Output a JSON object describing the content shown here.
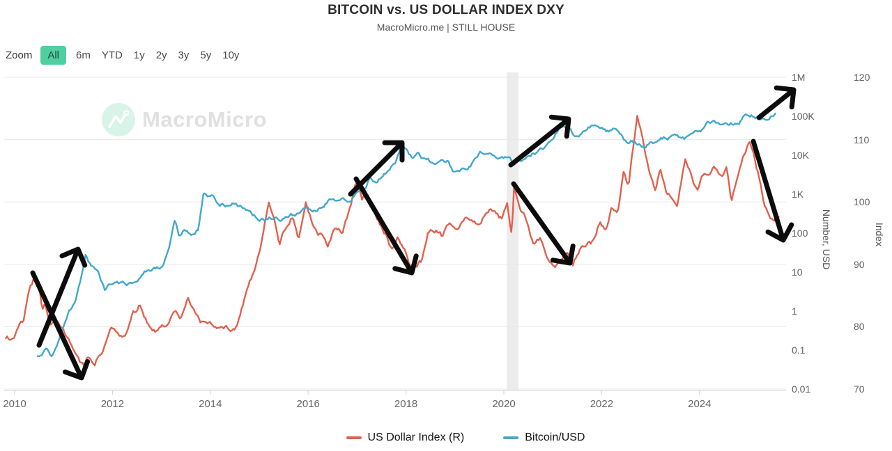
{
  "header": {
    "title": "BITCOIN vs. US DOLLAR INDEX DXY",
    "subtitle": "MacroMicro.me | STILL HOUSE"
  },
  "zoom_toolbar": {
    "label": "Zoom",
    "buttons": [
      {
        "label": "All",
        "active": true
      },
      {
        "label": "6m",
        "active": false
      },
      {
        "label": "YTD",
        "active": false
      },
      {
        "label": "1y",
        "active": false
      },
      {
        "label": "2y",
        "active": false
      },
      {
        "label": "3y",
        "active": false
      },
      {
        "label": "5y",
        "active": false
      },
      {
        "label": "10y",
        "active": false
      }
    ],
    "active_color": "#4ed0a2"
  },
  "watermark": {
    "text": "MacroMicro"
  },
  "legend": {
    "items": [
      {
        "label": "US Dollar Index (R)",
        "color": "#e2604d"
      },
      {
        "label": "Bitcoin/USD",
        "color": "#43a8cb"
      }
    ]
  },
  "chart_data": {
    "type": "line",
    "title": "BITCOIN vs. US DOLLAR INDEX DXY",
    "grid": true,
    "legend_position": "bottom",
    "x_axis": {
      "ticks": [
        2010,
        2012,
        2014,
        2016,
        2018,
        2020,
        2022,
        2024
      ],
      "range": [
        2009.8,
        2025.75
      ]
    },
    "y_axis_left_log": {
      "label": "Number, USD",
      "ticks": [
        "1M",
        "100K",
        "10K",
        "1K",
        "100",
        "10",
        "1",
        "0.1",
        "0.01"
      ],
      "tick_log10": [
        6,
        5,
        4,
        3,
        2,
        1,
        0,
        -1,
        -2
      ],
      "range_log10": [
        -2,
        6
      ]
    },
    "y_axis_right": {
      "label": "Index",
      "ticks": [
        120,
        110,
        100,
        90,
        80,
        70
      ],
      "range": [
        70,
        120
      ]
    },
    "series": [
      {
        "name": "US Dollar Index (R)",
        "axis": "index",
        "color": "#e2604d",
        "points": [
          [
            2009.82,
            77.8
          ],
          [
            2010.0,
            78.2
          ],
          [
            2010.08,
            80.2
          ],
          [
            2010.18,
            80.8
          ],
          [
            2010.3,
            85.8
          ],
          [
            2010.42,
            88.3
          ],
          [
            2010.5,
            86.0
          ],
          [
            2010.56,
            82.6
          ],
          [
            2010.63,
            83.5
          ],
          [
            2010.72,
            80.6
          ],
          [
            2010.82,
            81.6
          ],
          [
            2010.95,
            79.6
          ],
          [
            2011.05,
            78.2
          ],
          [
            2011.16,
            77.4
          ],
          [
            2011.3,
            74.6
          ],
          [
            2011.42,
            73.6
          ],
          [
            2011.52,
            75.2
          ],
          [
            2011.63,
            74.2
          ],
          [
            2011.8,
            76.6
          ],
          [
            2011.95,
            80.2
          ],
          [
            2012.1,
            79.2
          ],
          [
            2012.25,
            78.8
          ],
          [
            2012.42,
            81.8
          ],
          [
            2012.56,
            83.4
          ],
          [
            2012.7,
            81.2
          ],
          [
            2012.85,
            79.6
          ],
          [
            2013.0,
            79.9
          ],
          [
            2013.12,
            80.6
          ],
          [
            2013.25,
            83.1
          ],
          [
            2013.4,
            81.6
          ],
          [
            2013.54,
            84.4
          ],
          [
            2013.7,
            81.4
          ],
          [
            2013.85,
            80.4
          ],
          [
            2014.0,
            80.6
          ],
          [
            2014.15,
            80.1
          ],
          [
            2014.3,
            79.9
          ],
          [
            2014.45,
            79.6
          ],
          [
            2014.55,
            80.2
          ],
          [
            2014.7,
            84.9
          ],
          [
            2014.85,
            88.2
          ],
          [
            2015.0,
            92.2
          ],
          [
            2015.2,
            100.2
          ],
          [
            2015.3,
            97.2
          ],
          [
            2015.42,
            93.4
          ],
          [
            2015.55,
            96.2
          ],
          [
            2015.68,
            98.1
          ],
          [
            2015.8,
            94.2
          ],
          [
            2015.95,
            100.1
          ],
          [
            2016.1,
            96.2
          ],
          [
            2016.25,
            94.9
          ],
          [
            2016.4,
            93.2
          ],
          [
            2016.55,
            96.3
          ],
          [
            2016.7,
            95.6
          ],
          [
            2016.85,
            98.6
          ],
          [
            2016.98,
            103.2
          ],
          [
            2017.1,
            100.6
          ],
          [
            2017.22,
            101.1
          ],
          [
            2017.4,
            97.2
          ],
          [
            2017.55,
            95.2
          ],
          [
            2017.7,
            92.6
          ],
          [
            2017.85,
            94.1
          ],
          [
            2018.0,
            91.6
          ],
          [
            2018.12,
            88.8
          ],
          [
            2018.3,
            90.1
          ],
          [
            2018.45,
            95.1
          ],
          [
            2018.6,
            95.4
          ],
          [
            2018.75,
            94.4
          ],
          [
            2018.9,
            96.9
          ],
          [
            2019.05,
            96.1
          ],
          [
            2019.2,
            97.4
          ],
          [
            2019.35,
            97.1
          ],
          [
            2019.5,
            96.3
          ],
          [
            2019.65,
            98.4
          ],
          [
            2019.8,
            98.9
          ],
          [
            2019.95,
            97.4
          ],
          [
            2020.07,
            99.6
          ],
          [
            2020.16,
            95.1
          ],
          [
            2020.21,
            102.7
          ],
          [
            2020.3,
            99.3
          ],
          [
            2020.45,
            97.1
          ],
          [
            2020.6,
            93.4
          ],
          [
            2020.75,
            93.9
          ],
          [
            2020.9,
            91.1
          ],
          [
            2021.05,
            89.9
          ],
          [
            2021.15,
            91.1
          ],
          [
            2021.28,
            92.4
          ],
          [
            2021.4,
            89.9
          ],
          [
            2021.55,
            92.4
          ],
          [
            2021.7,
            93.1
          ],
          [
            2021.85,
            93.6
          ],
          [
            2021.95,
            96.3
          ],
          [
            2022.1,
            95.9
          ],
          [
            2022.2,
            99.1
          ],
          [
            2022.33,
            98.6
          ],
          [
            2022.45,
            104.6
          ],
          [
            2022.55,
            102.1
          ],
          [
            2022.65,
            109.1
          ],
          [
            2022.73,
            114.3
          ],
          [
            2022.82,
            110.6
          ],
          [
            2022.9,
            107.1
          ],
          [
            2023.0,
            103.6
          ],
          [
            2023.1,
            101.3
          ],
          [
            2023.2,
            105.1
          ],
          [
            2023.32,
            102.1
          ],
          [
            2023.45,
            101.1
          ],
          [
            2023.55,
            99.9
          ],
          [
            2023.7,
            106.9
          ],
          [
            2023.85,
            103.9
          ],
          [
            2023.95,
            101.6
          ],
          [
            2024.05,
            103.6
          ],
          [
            2024.2,
            104.6
          ],
          [
            2024.3,
            106.3
          ],
          [
            2024.45,
            104.6
          ],
          [
            2024.55,
            105.9
          ],
          [
            2024.65,
            100.4
          ],
          [
            2024.75,
            103.6
          ],
          [
            2024.85,
            106.6
          ],
          [
            2024.95,
            108.6
          ],
          [
            2025.03,
            109.9
          ],
          [
            2025.12,
            107.6
          ],
          [
            2025.22,
            104.1
          ],
          [
            2025.32,
            99.6
          ],
          [
            2025.42,
            98.1
          ],
          [
            2025.5,
            96.9
          ],
          [
            2025.62,
            97.6
          ]
        ]
      },
      {
        "name": "Bitcoin/USD",
        "axis": "log",
        "color": "#41a7cb",
        "points": [
          [
            2010.47,
            0.071
          ],
          [
            2010.55,
            0.062
          ],
          [
            2010.65,
            0.09
          ],
          [
            2010.75,
            0.07
          ],
          [
            2010.85,
            0.11
          ],
          [
            2010.95,
            0.26
          ],
          [
            2011.1,
            0.9
          ],
          [
            2011.25,
            1.6
          ],
          [
            2011.35,
            6
          ],
          [
            2011.45,
            26
          ],
          [
            2011.55,
            14
          ],
          [
            2011.7,
            9
          ],
          [
            2011.85,
            3.1
          ],
          [
            2012.0,
            5.6
          ],
          [
            2012.15,
            4.9
          ],
          [
            2012.3,
            5.1
          ],
          [
            2012.5,
            6.6
          ],
          [
            2012.65,
            11.2
          ],
          [
            2012.8,
            10.6
          ],
          [
            2013.0,
            13.6
          ],
          [
            2013.15,
            36
          ],
          [
            2013.28,
            225
          ],
          [
            2013.35,
            92
          ],
          [
            2013.45,
            112
          ],
          [
            2013.6,
            96
          ],
          [
            2013.75,
            132
          ],
          [
            2013.87,
            1080
          ],
          [
            2013.95,
            760
          ],
          [
            2014.08,
            830
          ],
          [
            2014.2,
            575
          ],
          [
            2014.35,
            485
          ],
          [
            2014.5,
            625
          ],
          [
            2014.62,
            505
          ],
          [
            2014.8,
            375
          ],
          [
            2015.0,
            232
          ],
          [
            2015.12,
            212
          ],
          [
            2015.25,
            247
          ],
          [
            2015.45,
            237
          ],
          [
            2015.6,
            262
          ],
          [
            2015.8,
            322
          ],
          [
            2015.95,
            432
          ],
          [
            2016.1,
            402
          ],
          [
            2016.3,
            452
          ],
          [
            2016.45,
            675
          ],
          [
            2016.6,
            612
          ],
          [
            2016.8,
            725
          ],
          [
            2017.0,
            1010
          ],
          [
            2017.12,
            1210
          ],
          [
            2017.25,
            2520
          ],
          [
            2017.4,
            2230
          ],
          [
            2017.5,
            2720
          ],
          [
            2017.65,
            4350
          ],
          [
            2017.8,
            7250
          ],
          [
            2017.93,
            19200
          ],
          [
            2018.05,
            10600
          ],
          [
            2018.15,
            8600
          ],
          [
            2018.25,
            11100
          ],
          [
            2018.4,
            7550
          ],
          [
            2018.55,
            6450
          ],
          [
            2018.7,
            6550
          ],
          [
            2018.85,
            6350
          ],
          [
            2018.97,
            3750
          ],
          [
            2019.1,
            3950
          ],
          [
            2019.3,
            5350
          ],
          [
            2019.5,
            12600
          ],
          [
            2019.6,
            10600
          ],
          [
            2019.75,
            9900
          ],
          [
            2019.9,
            7450
          ],
          [
            2020.0,
            8600
          ],
          [
            2020.1,
            9900
          ],
          [
            2020.22,
            5350
          ],
          [
            2020.35,
            7050
          ],
          [
            2020.5,
            9450
          ],
          [
            2020.65,
            11600
          ],
          [
            2020.8,
            13600
          ],
          [
            2020.95,
            23500
          ],
          [
            2021.05,
            35500
          ],
          [
            2021.2,
            57500
          ],
          [
            2021.3,
            59500
          ],
          [
            2021.42,
            36500
          ],
          [
            2021.55,
            33500
          ],
          [
            2021.7,
            47500
          ],
          [
            2021.85,
            66500
          ],
          [
            2021.95,
            48500
          ],
          [
            2022.1,
            42500
          ],
          [
            2022.25,
            45500
          ],
          [
            2022.4,
            30500
          ],
          [
            2022.5,
            20500
          ],
          [
            2022.6,
            23500
          ],
          [
            2022.75,
            19600
          ],
          [
            2022.9,
            16600
          ],
          [
            2023.05,
            21500
          ],
          [
            2023.2,
            28500
          ],
          [
            2023.35,
            27500
          ],
          [
            2023.5,
            30600
          ],
          [
            2023.65,
            26500
          ],
          [
            2023.8,
            27600
          ],
          [
            2023.95,
            43500
          ],
          [
            2024.1,
            48500
          ],
          [
            2024.2,
            71500
          ],
          [
            2024.35,
            64500
          ],
          [
            2024.5,
            58500
          ],
          [
            2024.65,
            64500
          ],
          [
            2024.8,
            70500
          ],
          [
            2024.92,
            98500
          ],
          [
            2025.05,
            103000
          ],
          [
            2025.15,
            96500
          ],
          [
            2025.28,
            83500
          ],
          [
            2025.4,
            96000
          ],
          [
            2025.55,
            109000
          ]
        ]
      }
    ]
  },
  "annotations": {
    "recession_band": {
      "from": 2020.06,
      "to": 2020.3,
      "color": "#ececec"
    },
    "arrows": [
      {
        "from": [
          56,
          496
        ],
        "to": [
          112,
          358
        ],
        "direction": "up"
      },
      {
        "from": [
          47,
          392
        ],
        "to": [
          117,
          543
        ],
        "direction": "down"
      },
      {
        "from": [
          503,
          279
        ],
        "to": [
          577,
          205
        ],
        "direction": "up"
      },
      {
        "from": [
          511,
          257
        ],
        "to": [
          591,
          392
        ],
        "direction": "down"
      },
      {
        "from": [
          733,
          237
        ],
        "to": [
          816,
          171
        ],
        "direction": "up"
      },
      {
        "from": [
          737,
          264
        ],
        "to": [
          818,
          378
        ],
        "direction": "down"
      },
      {
        "from": [
          1089,
          169
        ],
        "to": [
          1139,
          129
        ],
        "direction": "up"
      },
      {
        "from": [
          1081,
          203
        ],
        "to": [
          1124,
          345
        ],
        "direction": "down"
      }
    ]
  }
}
